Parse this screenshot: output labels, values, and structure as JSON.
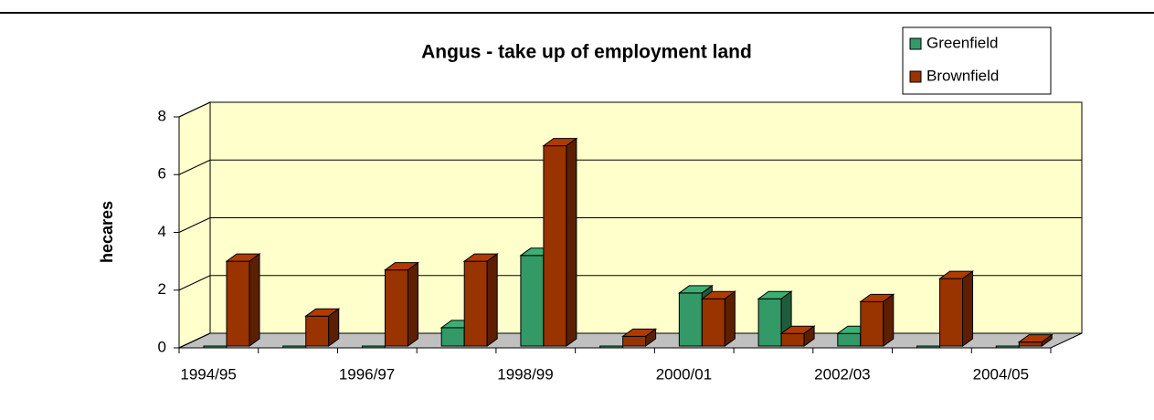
{
  "chart_data": {
    "type": "bar",
    "title": "Angus - take up of employment land",
    "y_label": "hecares",
    "categories": [
      "1994/95",
      null,
      "1996/97",
      null,
      "1998/99",
      null,
      "2000/01",
      null,
      "2002/03",
      null,
      "2004/05"
    ],
    "series": [
      {
        "name": "Greenfield",
        "color": "#339966",
        "values": [
          0,
          0,
          0,
          0.7,
          3.2,
          0,
          1.9,
          1.7,
          0.5,
          0,
          0
        ]
      },
      {
        "name": "Brownfield",
        "color": "#993300",
        "values": [
          3.0,
          1.1,
          2.7,
          3.0,
          7.0,
          0.4,
          1.7,
          0.5,
          1.6,
          2.4,
          0.2
        ]
      }
    ],
    "ylim": [
      0,
      8
    ],
    "yticks": [
      0,
      2,
      4,
      6,
      8
    ],
    "grid": true,
    "legend": "top-right"
  }
}
